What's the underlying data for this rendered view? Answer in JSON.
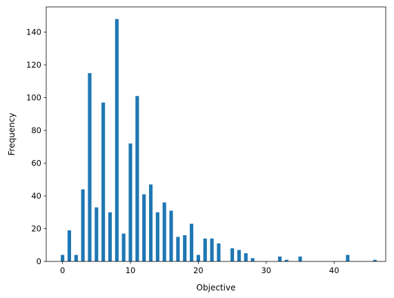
{
  "chart_data": {
    "type": "bar",
    "title": "",
    "xlabel": "Objective",
    "ylabel": "Frequency",
    "xlim": [
      -2.4,
      47.6
    ],
    "ylim": [
      0,
      155.4
    ],
    "xticks": [
      0,
      10,
      20,
      30,
      40
    ],
    "yticks": [
      0,
      20,
      40,
      60,
      80,
      100,
      120,
      140
    ],
    "bar_width": 0.52,
    "grid": false,
    "legend": "none",
    "bar_color": "#1f77b4",
    "x": [
      0,
      1,
      2,
      3,
      4,
      5,
      6,
      7,
      8,
      9,
      10,
      11,
      12,
      13,
      14,
      15,
      16,
      17,
      18,
      19,
      20,
      21,
      22,
      23,
      25,
      26,
      27,
      28,
      32,
      33,
      35,
      42,
      46
    ],
    "values": [
      4,
      19,
      4,
      44,
      115,
      33,
      97,
      30,
      148,
      17,
      72,
      101,
      41,
      47,
      30,
      36,
      31,
      15,
      16,
      23,
      4,
      14,
      14,
      11,
      8,
      7,
      5,
      2,
      3,
      1,
      3,
      4,
      1
    ]
  }
}
